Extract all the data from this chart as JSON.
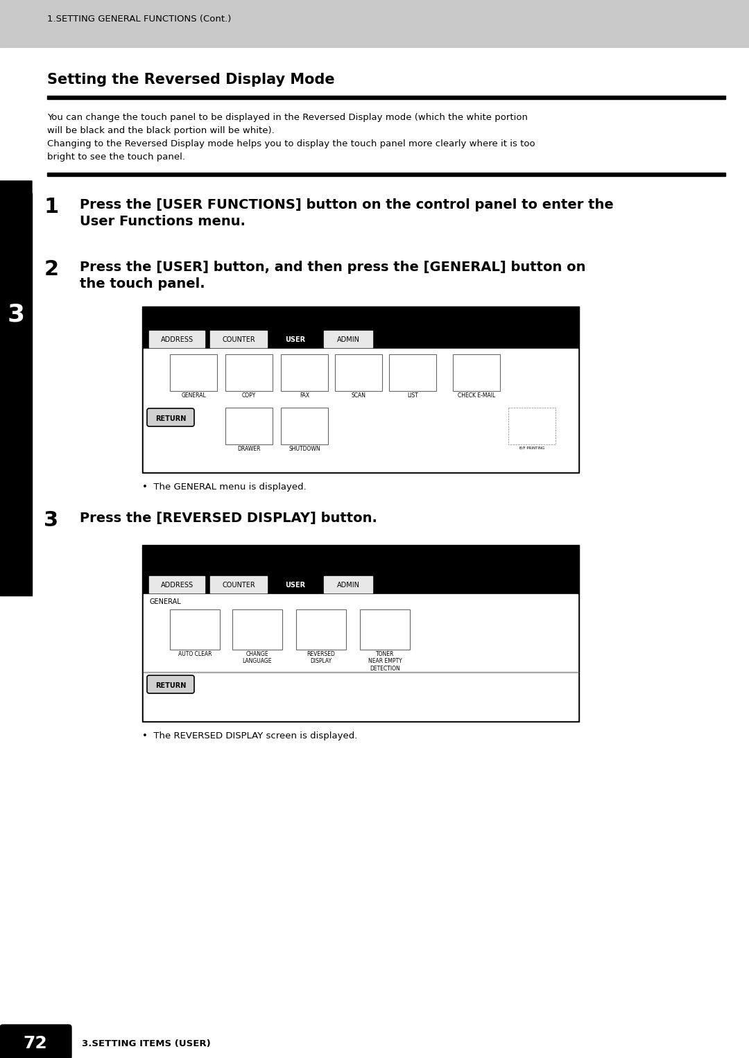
{
  "page_bg": "#ffffff",
  "header_bg": "#c8c8c8",
  "header_text": "1.SETTING GENERAL FUNCTIONS (Cont.)",
  "header_text_color": "#000000",
  "footer_bg": "#000000",
  "footer_page_num": "72",
  "footer_text": "3.SETTING ITEMS (USER)",
  "sidebar_bg": "#000000",
  "sidebar_text": "3",
  "sidebar_text_color": "#ffffff",
  "section_title": "Setting the Reversed Display Mode",
  "desc_line1": "You can change the touch panel to be displayed in the Reversed Display mode (which the white portion",
  "desc_line2": "will be black and the black portion will be white).",
  "desc_line3": "Changing to the Reversed Display mode helps you to display the touch panel more clearly where it is too",
  "desc_line4": "bright to see the touch panel.",
  "step1_num": "1",
  "step1_line1": "Press the [USER FUNCTIONS] button on the control panel to enter the",
  "step1_line2": "User Functions menu.",
  "step2_num": "2",
  "step2_line1": "Press the [USER] button, and then press the [GENERAL] button on",
  "step2_line2": "the touch panel.",
  "step2_note": "The GENERAL menu is displayed.",
  "step3_num": "3",
  "step3_text": "Press the [REVERSED DISPLAY] button.",
  "step3_note": "The REVERSED DISPLAY screen is displayed.",
  "tab_labels": [
    "ADDRESS",
    "COUNTER",
    "USER",
    "ADMIN"
  ],
  "screen1_icons_r1": [
    "GENERAL",
    "COPY",
    "FAX",
    "SCAN",
    "LIST",
    "CHECK E-MAIL"
  ],
  "screen1_icons_r2": [
    "DRAWER",
    "SHUTDOWN"
  ],
  "screen2_icons": [
    "AUTO CLEAR",
    "CHANGE\nLANGUAGE",
    "REVERSED\nDISPLAY",
    "TONER\nNEAR EMPTY\nDETECTION"
  ]
}
